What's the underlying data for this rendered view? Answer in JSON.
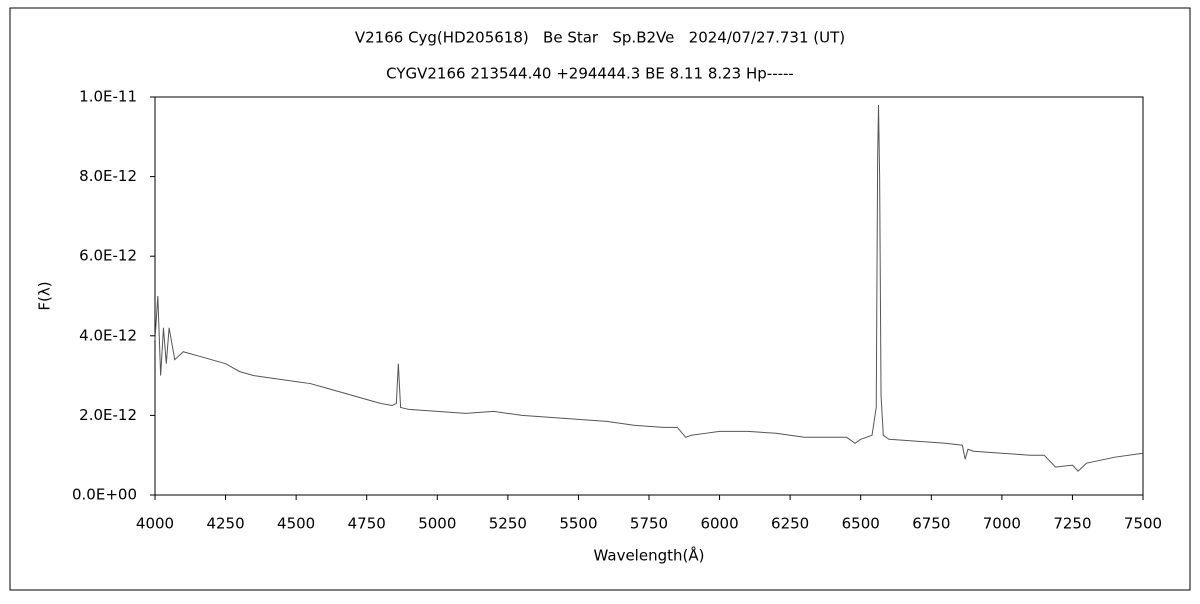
{
  "chart_data": {
    "type": "line",
    "title": "V2166 Cyg(HD205618)   Be Star   Sp.B2Ve   2024/07/27.731 (UT)",
    "subtitle": "CYGV2166 213544.40 +294444.3 BE 8.11 8.23 Hp-----",
    "xlabel": "Wavelength(Å)",
    "ylabel": "F(λ)",
    "xlim": [
      4000,
      7500
    ],
    "xticks": [
      4000,
      4250,
      4500,
      4750,
      5000,
      5250,
      5500,
      5750,
      6000,
      6250,
      6500,
      6750,
      7000,
      7250,
      7500
    ],
    "ylim": [
      0,
      1e-11
    ],
    "yticks": [
      {
        "value": 0,
        "label": "0.0E+00"
      },
      {
        "value": 2e-12,
        "label": "2.0E-12"
      },
      {
        "value": 4e-12,
        "label": "4.0E-12"
      },
      {
        "value": 6e-12,
        "label": "6.0E-12"
      },
      {
        "value": 8e-12,
        "label": "8.0E-12"
      },
      {
        "value": 1e-11,
        "label": "1.0E-11"
      }
    ],
    "grid": false,
    "series": [
      {
        "color": "#555555",
        "x": [
          4000,
          4010,
          4020,
          4030,
          4040,
          4050,
          4070,
          4100,
          4150,
          4200,
          4250,
          4300,
          4350,
          4400,
          4450,
          4500,
          4550,
          4600,
          4650,
          4700,
          4750,
          4800,
          4840,
          4855,
          4862,
          4870,
          4900,
          5000,
          5100,
          5200,
          5300,
          5400,
          5500,
          5600,
          5700,
          5800,
          5850,
          5880,
          5900,
          5950,
          6000,
          6100,
          6200,
          6250,
          6300,
          6400,
          6450,
          6480,
          6500,
          6540,
          6555,
          6560,
          6563,
          6567,
          6572,
          6580,
          6600,
          6700,
          6800,
          6860,
          6870,
          6880,
          6900,
          7000,
          7100,
          7150,
          7190,
          7250,
          7270,
          7300,
          7400,
          7500
        ],
        "values": [
          3.9e-12,
          5e-12,
          3e-12,
          4.2e-12,
          3.3e-12,
          4.2e-12,
          3.4e-12,
          3.6e-12,
          3.5e-12,
          3.4e-12,
          3.3e-12,
          3.1e-12,
          3e-12,
          2.95e-12,
          2.9e-12,
          2.85e-12,
          2.8e-12,
          2.7e-12,
          2.6e-12,
          2.5e-12,
          2.4e-12,
          2.3e-12,
          2.25e-12,
          2.3e-12,
          3.3e-12,
          2.2e-12,
          2.15e-12,
          2.1e-12,
          2.05e-12,
          2.1e-12,
          2e-12,
          1.95e-12,
          1.9e-12,
          1.85e-12,
          1.75e-12,
          1.7e-12,
          1.7e-12,
          1.45e-12,
          1.5e-12,
          1.55e-12,
          1.6e-12,
          1.6e-12,
          1.55e-12,
          1.5e-12,
          1.45e-12,
          1.45e-12,
          1.45e-12,
          1.3e-12,
          1.4e-12,
          1.5e-12,
          2.2e-12,
          8.5e-12,
          9.8e-12,
          8e-12,
          2.5e-12,
          1.5e-12,
          1.4e-12,
          1.35e-12,
          1.3e-12,
          1.25e-12,
          9e-13,
          1.15e-12,
          1.1e-12,
          1.05e-12,
          1e-12,
          1e-12,
          7e-13,
          7.5e-13,
          6e-13,
          8e-13,
          9.5e-13,
          1.05e-12
        ]
      }
    ]
  }
}
